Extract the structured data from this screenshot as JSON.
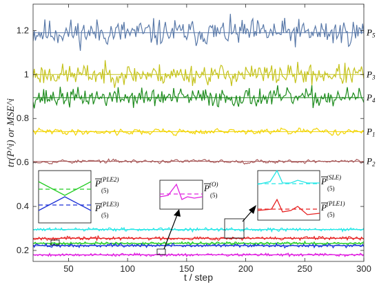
{
  "chart_data": {
    "type": "line",
    "title": "",
    "xlabel": "t / step",
    "ylabel": "tr(P^i) or MSE^i",
    "xlim": [
      20,
      300
    ],
    "ylim": [
      0.15,
      1.32
    ],
    "xticks": [
      50,
      100,
      150,
      200,
      250,
      300
    ],
    "yticks": [
      0.2,
      0.4,
      0.6,
      0.8,
      1.0,
      1.2
    ],
    "xtick_labels": [
      "50",
      "100",
      "150",
      "200",
      "250",
      "300"
    ],
    "ytick_labels": [
      "0.2",
      "0.4",
      "0.6",
      "0.8",
      "1",
      "1.2"
    ],
    "grid": false,
    "series": [
      {
        "name": "P5",
        "label_main": "P",
        "label_sub": "5",
        "color": "#5878a8",
        "mean": 1.19,
        "amplitude": 0.09,
        "seed": 11,
        "style": "noisy"
      },
      {
        "name": "P3",
        "label_main": "P",
        "label_sub": "3",
        "color": "#c4c21a",
        "mean": 1.0,
        "amplitude": 0.07,
        "seed": 23,
        "style": "noisy"
      },
      {
        "name": "P4",
        "label_main": "P",
        "label_sub": "4",
        "color": "#1b8a1b",
        "mean": 0.895,
        "amplitude": 0.065,
        "seed": 37,
        "style": "noisy"
      },
      {
        "name": "P1",
        "label_main": "P",
        "label_sub": "1",
        "color": "#f2d400",
        "mean": 0.74,
        "amplitude": 0.04,
        "seed": 41,
        "style": "smooth"
      },
      {
        "name": "P2",
        "label_main": "P",
        "label_sub": "2",
        "color": "#a85a5a",
        "mean": 0.605,
        "amplitude": 0.025,
        "seed": 53,
        "style": "smooth"
      },
      {
        "name": "MSE_SLE",
        "color": "#22e6e6",
        "mean": 0.295,
        "amplitude": 0.012,
        "seed": 61,
        "style": "noisy"
      },
      {
        "name": "MSE_PLE1",
        "color": "#e62020",
        "mean": 0.255,
        "amplitude": 0.012,
        "seed": 67,
        "style": "noisy"
      },
      {
        "name": "MSE_PLE2",
        "color": "#22cc22",
        "mean": 0.232,
        "amplitude": 0.01,
        "seed": 71,
        "style": "noisy"
      },
      {
        "name": "MSE_PLE3",
        "color": "#1a2fd6",
        "mean": 0.222,
        "amplitude": 0.012,
        "seed": 73,
        "style": "noisy"
      },
      {
        "name": "MSE_O",
        "color": "#e020e0",
        "mean": 0.18,
        "amplitude": 0.01,
        "seed": 79,
        "style": "noisy"
      }
    ],
    "insets": [
      {
        "id": "inset-ple",
        "entries": [
          {
            "label_main": "P",
            "label_sub": "(5)",
            "label_sup": "(PLE2)",
            "color": "#22cc22"
          },
          {
            "label_main": "P",
            "label_sub": "(5)",
            "label_sup": "(PLE3)",
            "color": "#1a2fd6"
          }
        ]
      },
      {
        "id": "inset-o",
        "entries": [
          {
            "label_main": "P",
            "label_sub": "(5)",
            "label_sup": "(O)",
            "color": "#e020e0"
          }
        ]
      },
      {
        "id": "inset-sle",
        "entries": [
          {
            "label_main": "P",
            "label_sub": "(5)",
            "label_sup": "(SLE)",
            "color": "#22e6e6"
          },
          {
            "label_main": "P",
            "label_sub": "(5)",
            "label_sup": "(PLE1)",
            "color": "#e62020"
          }
        ]
      }
    ]
  }
}
